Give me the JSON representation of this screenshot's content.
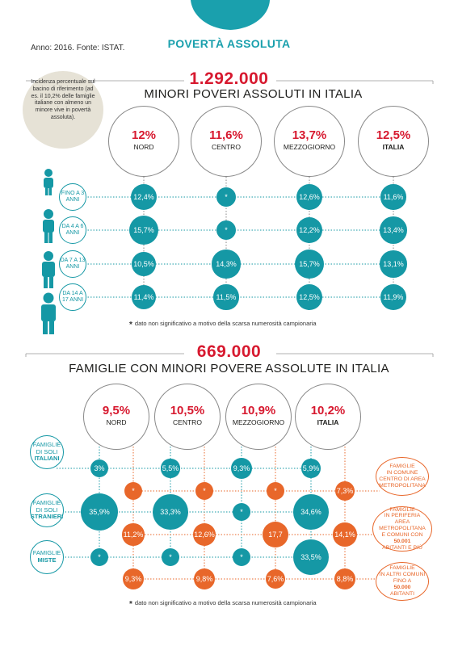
{
  "header": {
    "title": "POVERTÀ ASSOLUTA",
    "source": "Anno: 2016. Fonte: ISTAT.",
    "side_note": "Incidenza percentuale sul bacino di riferimento (ad es. il 10,2% delle famiglie italiane con almeno un minore vive in povertà assoluta)."
  },
  "chart_data": [
    {
      "type": "table",
      "title": "1.292.000",
      "subtitle": "MINORI POVERI ASSOLUTI IN ITALIA",
      "regions": [
        {
          "name": "NORD",
          "total": "12%"
        },
        {
          "name": "CENTRO",
          "total": "11,6%"
        },
        {
          "name": "MEZZOGIORNO",
          "total": "13,7%"
        },
        {
          "name": "ITALIA",
          "total": "12,5%"
        }
      ],
      "rows": [
        {
          "label_lines": [
            "FINO",
            "A",
            "3 ANNI"
          ],
          "values": [
            "12,4%",
            "*",
            "12,6%",
            "11,6%"
          ],
          "numeric": [
            12.4,
            null,
            12.6,
            11.6
          ]
        },
        {
          "label_lines": [
            "DA 4",
            "A",
            "6 ANNI"
          ],
          "values": [
            "15,7%",
            "*",
            "12,2%",
            "13,4%"
          ],
          "numeric": [
            15.7,
            null,
            12.2,
            13.4
          ]
        },
        {
          "label_lines": [
            "DA 7",
            "A",
            "13 ANNI"
          ],
          "values": [
            "10,5%",
            "14,3%",
            "15,7%",
            "13,1%"
          ],
          "numeric": [
            10.5,
            14.3,
            15.7,
            13.1
          ]
        },
        {
          "label_lines": [
            "DA 14",
            "A",
            "17 ANNI"
          ],
          "values": [
            "11,4%",
            "11,5%",
            "12,5%",
            "11,9%"
          ],
          "numeric": [
            11.4,
            11.5,
            12.5,
            11.9
          ]
        }
      ],
      "footnote": "* dato non significativo a motivo della scarsa numerosità campionaria",
      "colors": {
        "dot": "#1598a5",
        "total": "#d7192f"
      }
    },
    {
      "type": "table",
      "title": "669.000",
      "subtitle": "FAMIGLIE CON MINORI POVERE ASSOLUTE IN ITALIA",
      "regions": [
        {
          "name": "NORD",
          "total": "9,5%"
        },
        {
          "name": "CENTRO",
          "total": "10,5%"
        },
        {
          "name": "MEZZOGIORNO",
          "total": "10,9%"
        },
        {
          "name": "ITALIA",
          "total": "10,2%"
        }
      ],
      "citizenship_rows": [
        {
          "label_lines": [
            "FAMIGLIE",
            "DI SOLI"
          ],
          "label_bold": "ITALIANI",
          "values": [
            "3%",
            "5,5%",
            "9,3%",
            "5,9%"
          ],
          "numeric": [
            3.0,
            5.5,
            9.3,
            5.9
          ]
        },
        {
          "label_lines": [
            "FAMIGLIE",
            "DI SOLI"
          ],
          "label_bold": "STRANIERI",
          "values": [
            "35,9%",
            "33,3%",
            "*",
            "34,6%"
          ],
          "numeric": [
            35.9,
            33.3,
            null,
            34.6
          ]
        },
        {
          "label_lines": [
            "FAMIGLIE"
          ],
          "label_bold": "MISTE",
          "values": [
            "*",
            "*",
            "*",
            "33,5%"
          ],
          "numeric": [
            null,
            null,
            null,
            33.5
          ]
        }
      ],
      "territory_rows": [
        {
          "label_lines": [
            "FAMIGLIE",
            "IN COMUNE",
            "CENTRO DI AREA",
            "METROPOLITANA"
          ],
          "values": [
            "*",
            "*",
            "*",
            "7,3%"
          ],
          "numeric": [
            null,
            null,
            null,
            7.3
          ]
        },
        {
          "label_lines": [
            "FAMIGLIE",
            "IN PERIFERIA",
            "AREA METROPOLITANA",
            "E COMUNI CON",
            "50.001",
            "ABITANTI E PIÙ"
          ],
          "values": [
            "11,2%",
            "12,6%",
            "17,7",
            "14,1%"
          ],
          "numeric": [
            11.2,
            12.6,
            17.7,
            14.1
          ]
        },
        {
          "label_lines": [
            "FAMIGLIE",
            "IN ALTRI COMUNI",
            "FINO A",
            "50.000",
            "ABITANTI"
          ],
          "values": [
            "9,3%",
            "9,8%",
            "7,6%",
            "8,8%"
          ],
          "numeric": [
            9.3,
            9.8,
            7.6,
            8.8
          ]
        }
      ],
      "footnote": "* dato non significativo a motivo della scarsa numerosità campionaria",
      "colors": {
        "citizenship": "#1598a5",
        "territory": "#e8672a",
        "total": "#d7192f"
      }
    }
  ]
}
